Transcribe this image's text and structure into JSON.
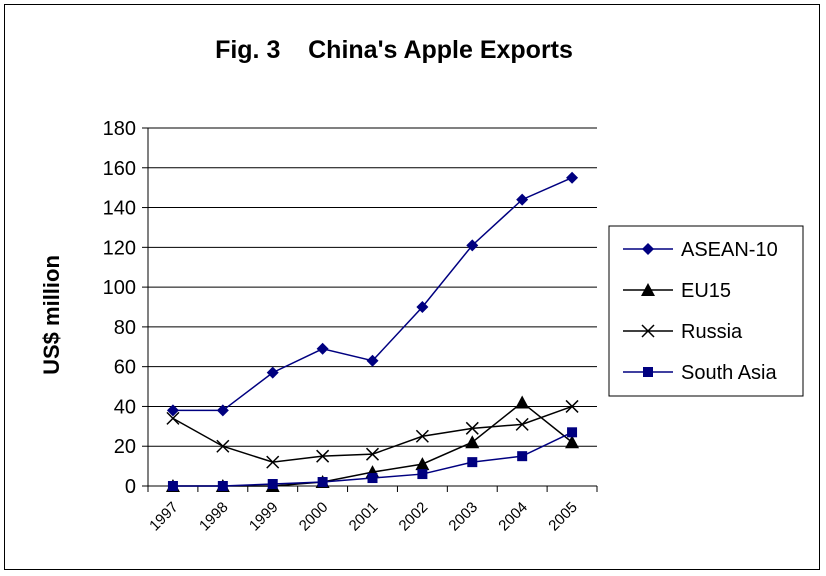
{
  "chart_data": {
    "type": "line",
    "title": "Fig. 3    China's Apple Exports",
    "xlabel": "",
    "ylabel": "US$ million",
    "categories": [
      "1997",
      "1998",
      "1999",
      "2000",
      "2001",
      "2002",
      "2003",
      "2004",
      "2005"
    ],
    "ylim": [
      0,
      180
    ],
    "yticks": [
      0,
      20,
      40,
      60,
      80,
      100,
      120,
      140,
      160,
      180
    ],
    "grid": true,
    "legend_position": "right",
    "series": [
      {
        "name": "ASEAN-10",
        "marker": "diamond",
        "color": "#000080",
        "values": [
          38,
          38,
          57,
          69,
          63,
          90,
          121,
          144,
          155
        ]
      },
      {
        "name": "EU15",
        "marker": "triangle",
        "color": "#000000",
        "values": [
          0,
          0,
          0,
          2,
          7,
          11,
          22,
          42,
          22
        ]
      },
      {
        "name": "Russia",
        "marker": "x",
        "color": "#000000",
        "values": [
          34,
          20,
          12,
          15,
          16,
          25,
          29,
          31,
          40
        ]
      },
      {
        "name": "South Asia",
        "marker": "square",
        "color": "#000080",
        "values": [
          0,
          0,
          1,
          2,
          4,
          6,
          12,
          15,
          27
        ]
      }
    ]
  }
}
